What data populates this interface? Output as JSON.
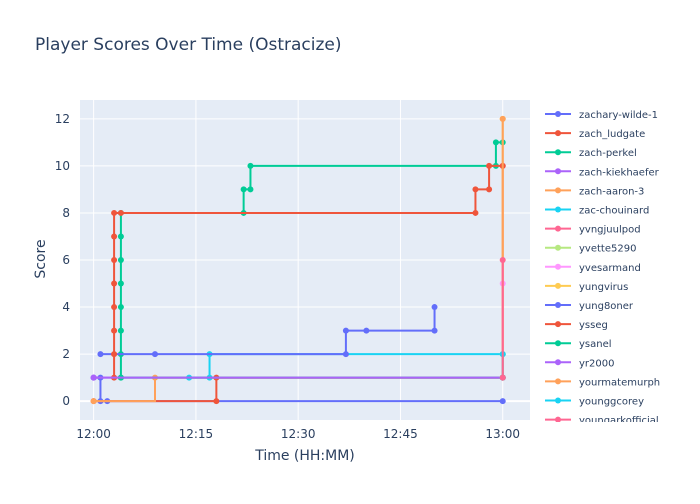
{
  "chart_data": {
    "type": "line",
    "line_shape": "step",
    "title": "Player Scores Over Time (Ostracize)",
    "xlabel": "Time (HH:MM)",
    "ylabel": "Score",
    "xlim": [
      "11:58",
      "13:04"
    ],
    "ylim": [
      -0.8,
      12.8
    ],
    "x_ticks": [
      "12:00",
      "12:15",
      "12:30",
      "12:45",
      "13:00"
    ],
    "y_ticks": [
      0,
      2,
      4,
      6,
      8,
      10,
      12
    ],
    "grid": true,
    "legend_position": "right",
    "colors": {
      "plot_bg": "#e5ecf6",
      "grid": "#ffffff",
      "text": "#2a3f5f"
    },
    "series": [
      {
        "name": "zachary-wilde-1",
        "color": "#636efa",
        "points": [
          [
            "12:00",
            1
          ],
          [
            "12:01",
            1
          ],
          [
            "12:01",
            0
          ],
          [
            "12:02",
            0
          ],
          [
            "13:00",
            0
          ]
        ]
      },
      {
        "name": "zach_ludgate",
        "color": "#ef553b",
        "points": [
          [
            "12:00",
            0
          ],
          [
            "12:18",
            0
          ],
          [
            "12:18",
            1
          ],
          [
            "13:00",
            1
          ]
        ]
      },
      {
        "name": "zach-perkel",
        "color": "#00cc96",
        "points": [
          [
            "12:04",
            1
          ],
          [
            "12:04",
            2
          ],
          [
            "12:04",
            3
          ],
          [
            "12:04",
            4
          ],
          [
            "12:04",
            5
          ],
          [
            "12:04",
            6
          ],
          [
            "12:04",
            7
          ],
          [
            "12:04",
            8
          ],
          [
            "12:22",
            8
          ],
          [
            "12:22",
            9
          ],
          [
            "12:23",
            9
          ],
          [
            "12:23",
            10
          ],
          [
            "12:59",
            10
          ],
          [
            "12:59",
            11
          ],
          [
            "13:00",
            11
          ]
        ]
      },
      {
        "name": "zach-kiekhaefer",
        "color": "#ab63fa",
        "points": [
          [
            "12:00",
            1
          ],
          [
            "13:00",
            1
          ]
        ]
      },
      {
        "name": "zach-aaron-3",
        "color": "#ffa15a",
        "points": [
          [
            "12:00",
            0
          ],
          [
            "12:09",
            1
          ],
          [
            "13:00",
            1
          ]
        ]
      },
      {
        "name": "zac-chouinard",
        "color": "#19d3f3",
        "points": [
          [
            "12:14",
            1
          ],
          [
            "12:17",
            1
          ],
          [
            "12:17",
            2
          ],
          [
            "13:00",
            2
          ]
        ]
      },
      {
        "name": "yvngjuulpod",
        "color": "#ff6692",
        "points": [
          [
            "13:00",
            1
          ],
          [
            "13:00",
            10
          ]
        ]
      },
      {
        "name": "yvette5290",
        "color": "#b6e880",
        "points": [
          [
            "13:00",
            1
          ],
          [
            "13:00",
            2
          ]
        ]
      },
      {
        "name": "yvesarmand",
        "color": "#ff97ff",
        "points": [
          [
            "13:00",
            1
          ],
          [
            "13:00",
            5
          ]
        ]
      },
      {
        "name": "yungvirus",
        "color": "#fecb52",
        "points": [
          [
            "13:00",
            1
          ],
          [
            "13:00",
            12
          ]
        ]
      },
      {
        "name": "yung8oner",
        "color": "#636efa",
        "points": [
          [
            "12:01",
            2
          ],
          [
            "12:09",
            2
          ],
          [
            "12:37",
            2
          ],
          [
            "12:37",
            3
          ],
          [
            "12:40",
            3
          ],
          [
            "12:50",
            3
          ],
          [
            "12:50",
            4
          ]
        ]
      },
      {
        "name": "ysseg",
        "color": "#ef553b",
        "points": [
          [
            "12:03",
            1
          ],
          [
            "12:03",
            2
          ],
          [
            "12:03",
            3
          ],
          [
            "12:03",
            4
          ],
          [
            "12:03",
            5
          ],
          [
            "12:03",
            6
          ],
          [
            "12:03",
            7
          ],
          [
            "12:03",
            8
          ],
          [
            "12:04",
            8
          ],
          [
            "12:56",
            8
          ],
          [
            "12:56",
            9
          ],
          [
            "12:58",
            9
          ],
          [
            "12:58",
            10
          ],
          [
            "13:00",
            10
          ]
        ]
      },
      {
        "name": "ysanel",
        "color": "#00cc96",
        "points": [
          [
            "12:04",
            1
          ],
          [
            "13:00",
            1
          ]
        ]
      },
      {
        "name": "yr2000",
        "color": "#ab63fa",
        "points": [
          [
            "12:00",
            1
          ],
          [
            "13:00",
            1
          ]
        ]
      },
      {
        "name": "yourmatemurph",
        "color": "#ffa15a",
        "points": [
          [
            "13:00",
            1
          ],
          [
            "13:00",
            12
          ]
        ]
      },
      {
        "name": "younggcorey",
        "color": "#19d3f3",
        "points": [
          [
            "13:00",
            1
          ],
          [
            "13:00",
            2
          ]
        ]
      },
      {
        "name": "youngarkofficial",
        "color": "#ff6692",
        "points": [
          [
            "13:00",
            1
          ],
          [
            "13:00",
            6
          ]
        ]
      }
    ]
  }
}
